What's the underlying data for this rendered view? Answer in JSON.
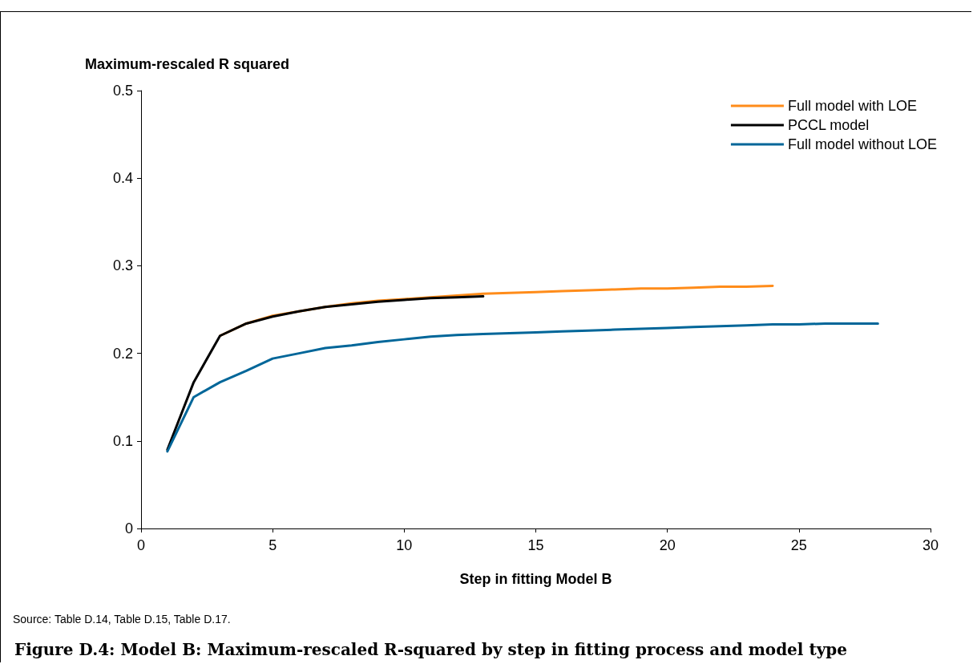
{
  "chart_data": {
    "type": "line",
    "title": "Figure D.4: Model B: Maximum-rescaled R-squared by step in fitting process and model type",
    "ylabel": "Maximum-rescaled R squared",
    "xlabel": "Step in fitting Model B",
    "annotations": [
      "Source: Table D.14, Table D.15, Table D.17."
    ],
    "series": [
      {
        "name": "Full model with LOE",
        "color": "#ff8c1a",
        "x": [
          3,
          4,
          5,
          6,
          7,
          8,
          9,
          10,
          11,
          12,
          13,
          14,
          15,
          16,
          17,
          18,
          19,
          20,
          21,
          22,
          23,
          24
        ],
        "values": [
          0.22,
          0.234,
          0.243,
          0.248,
          0.253,
          0.257,
          0.26,
          0.262,
          0.264,
          0.266,
          0.268,
          0.269,
          0.27,
          0.271,
          0.272,
          0.273,
          0.274,
          0.274,
          0.275,
          0.276,
          0.276,
          0.277
        ]
      },
      {
        "name": "PCCL model",
        "color": "#000000",
        "x": [
          1,
          2,
          3,
          4,
          5,
          6,
          7,
          8,
          9,
          10,
          11,
          12,
          13
        ],
        "values": [
          0.09,
          0.167,
          0.22,
          0.234,
          0.242,
          0.248,
          0.253,
          0.256,
          0.259,
          0.261,
          0.263,
          0.264,
          0.265
        ]
      },
      {
        "name": "Full model without LOE",
        "color": "#006699",
        "x": [
          1,
          2,
          3,
          4,
          5,
          6,
          7,
          8,
          9,
          10,
          11,
          12,
          13,
          14,
          15,
          16,
          17,
          18,
          19,
          20,
          21,
          22,
          23,
          24,
          25,
          26,
          27,
          28
        ],
        "values": [
          0.088,
          0.15,
          0.167,
          0.18,
          0.194,
          0.2,
          0.206,
          0.209,
          0.213,
          0.216,
          0.219,
          0.221,
          0.222,
          0.223,
          0.224,
          0.225,
          0.226,
          0.227,
          0.228,
          0.229,
          0.23,
          0.231,
          0.232,
          0.233,
          0.233,
          0.234,
          0.234,
          0.234
        ]
      }
    ],
    "xlim": [
      0,
      30
    ],
    "xticks": [
      0,
      5,
      10,
      15,
      20,
      25,
      30
    ],
    "ylim": [
      0,
      0.5
    ],
    "yticks": [
      0,
      0.1,
      0.2,
      0.3,
      0.4,
      0.5
    ],
    "grid": false,
    "legend": "top right",
    "marker": "none",
    "line_style": "solid"
  }
}
